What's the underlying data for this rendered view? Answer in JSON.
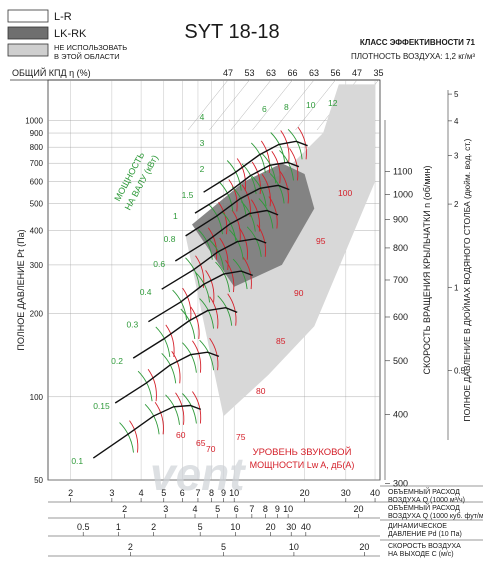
{
  "title": "SYT 18-18",
  "legend": [
    {
      "label": "L-R",
      "swatch": "#ffffff"
    },
    {
      "label": "LK-RK",
      "swatch": "#6f6f6f"
    },
    {
      "label": "НЕ ИСПОЛЬЗОВАТЬ\nВ ЭТОЙ ОБЛАСТИ",
      "swatch": "#cfcfcf"
    }
  ],
  "efficiency_class": "КЛАСС ЭФФЕКТИВНОСТИ 71",
  "air_density": "ПЛОТНОСТЬ ВОЗДУХА: 1,2 кг/м³",
  "efficiency_axis_label": "ОБЩИЙ КПД η (%)",
  "watermark": "vent",
  "colors": {
    "red": "#d4202a",
    "green": "#2f9a3a",
    "black": "#111111",
    "grid": "#9a9a9a"
  },
  "chart_data": {
    "type": "line",
    "scale": "log-log",
    "xlabel": "ОБЪЕМНЫЙ РАСХОД ВОЗДУХА Q (1000 м³/ч)",
    "ylabel": "ПОЛНОЕ ДАВЛЕНИЕ Pt (Па)",
    "right_axis_1_label": "СКОРОСТЬ ВРАЩЕНИЯ КРЫЛЬЧАТКИ n (об/мин)",
    "right_axis_2_label": "ПОЛНОЕ ДАВЛЕНИЕ В ДЮЙМАХ ВОДЯНОГО СТОЛБА (дюйм. вод. ст.)",
    "power_label": "МОЩНОСТЬ НА ВАЛУ (кВт)",
    "sound_label": "УРОВЕНЬ ЗВУКОВОЙ МОЩНОСТИ Lw A, дБ(А)",
    "xlim": [
      1.6,
      42
    ],
    "ylim": [
      50,
      1400
    ],
    "y_ticks": [
      50,
      100,
      200,
      300,
      400,
      500,
      600,
      700,
      800,
      900,
      1000
    ],
    "x_ticks_q": [
      2,
      3,
      4,
      5,
      6,
      7,
      8,
      9,
      10,
      20,
      30,
      40
    ],
    "efficiency_ticks": [
      "47",
      "53",
      "63",
      "66",
      "63",
      "56",
      "47",
      "35"
    ],
    "rpm_ticks": [
      300,
      400,
      500,
      600,
      700,
      800,
      900,
      1000,
      1100
    ],
    "inwg_ticks": [
      "0.5",
      "1",
      "2",
      "3",
      "4",
      "5"
    ],
    "power_ticks": [
      "0.1",
      "0.15",
      "0.2",
      "0.3",
      "0.4",
      "0.6",
      "0.8",
      "1",
      "1.5",
      "2",
      "3",
      "4"
    ],
    "power_ticks_upper": [
      "6",
      "8",
      "10",
      "12"
    ],
    "sound_ticks": [
      "60",
      "65",
      "70",
      "75",
      "80",
      "85",
      "90",
      "95",
      "100"
    ],
    "series": [
      {
        "rpm": 400,
        "points": [
          [
            2.5,
            60
          ],
          [
            3.5,
            73
          ],
          [
            4.5,
            85
          ],
          [
            5.5,
            92
          ],
          [
            6.5,
            93
          ],
          [
            7.2,
            90
          ]
        ]
      },
      {
        "rpm": 500,
        "points": [
          [
            3.1,
            95
          ],
          [
            4.2,
            112
          ],
          [
            5.3,
            130
          ],
          [
            6.5,
            142
          ],
          [
            7.7,
            145
          ],
          [
            8.6,
            140
          ]
        ]
      },
      {
        "rpm": 600,
        "points": [
          [
            3.7,
            138
          ],
          [
            5,
            162
          ],
          [
            6.4,
            188
          ],
          [
            7.7,
            205
          ],
          [
            9.2,
            210
          ],
          [
            10.3,
            202
          ]
        ]
      },
      {
        "rpm": 700,
        "points": [
          [
            4.3,
            187
          ],
          [
            5.9,
            220
          ],
          [
            7.4,
            255
          ],
          [
            9,
            278
          ],
          [
            10.7,
            285
          ],
          [
            12,
            275
          ]
        ]
      },
      {
        "rpm": 800,
        "points": [
          [
            4.9,
            245
          ],
          [
            6.7,
            288
          ],
          [
            8.5,
            334
          ],
          [
            10.3,
            364
          ],
          [
            12.3,
            373
          ],
          [
            13.7,
            360
          ]
        ]
      },
      {
        "rpm": 900,
        "points": [
          [
            5.6,
            310
          ],
          [
            7.6,
            364
          ],
          [
            9.6,
            422
          ],
          [
            11.6,
            460
          ],
          [
            13.8,
            472
          ],
          [
            15.4,
            455
          ]
        ]
      },
      {
        "rpm": 1000,
        "points": [
          [
            6.2,
            382
          ],
          [
            8.4,
            450
          ],
          [
            10.6,
            521
          ],
          [
            12.9,
            568
          ],
          [
            15.4,
            582
          ],
          [
            17.2,
            562
          ]
        ]
      },
      {
        "rpm": 1100,
        "points": [
          [
            6.8,
            462
          ],
          [
            9.3,
            544
          ],
          [
            11.7,
            630
          ],
          [
            14.2,
            688
          ],
          [
            16.9,
            705
          ],
          [
            18.9,
            680
          ]
        ]
      },
      {
        "rpm": 1200,
        "points": [
          [
            7.4,
            550
          ],
          [
            10.1,
            648
          ],
          [
            12.8,
            750
          ],
          [
            15.5,
            818
          ],
          [
            18.4,
            840
          ],
          [
            20.6,
            810
          ]
        ]
      }
    ],
    "credits": "vent-Lab"
  },
  "bottom_scales": [
    {
      "label": "ОБЪЕМНЫЙ РАСХОД\nВОЗДУХА Q (1000 м³/ч)",
      "ticks": [
        "2",
        "3",
        "4",
        "5",
        "6",
        "7",
        "8",
        "9",
        "10",
        "20",
        "30",
        "40"
      ]
    },
    {
      "label": "ОБЪЕМНЫЙ РАСХОД\nВОЗДУХА Q (1000 куб. фут/мин)",
      "ticks": [
        "2",
        "3",
        "4",
        "5",
        "6",
        "7",
        "8",
        "9",
        "10",
        "20"
      ]
    },
    {
      "label": "ДИНАМИЧЕСКОЕ\nДАВЛЕНИЕ Pd (10 Па)",
      "ticks": [
        "0.5",
        "1",
        "2",
        "5",
        "10",
        "20",
        "30",
        "40"
      ]
    },
    {
      "label": "СКОРОСТЬ ВОЗДУХА\nНА ВЫХОДЕ C (м/с)",
      "ticks": [
        "2",
        "5",
        "10",
        "20"
      ]
    }
  ]
}
